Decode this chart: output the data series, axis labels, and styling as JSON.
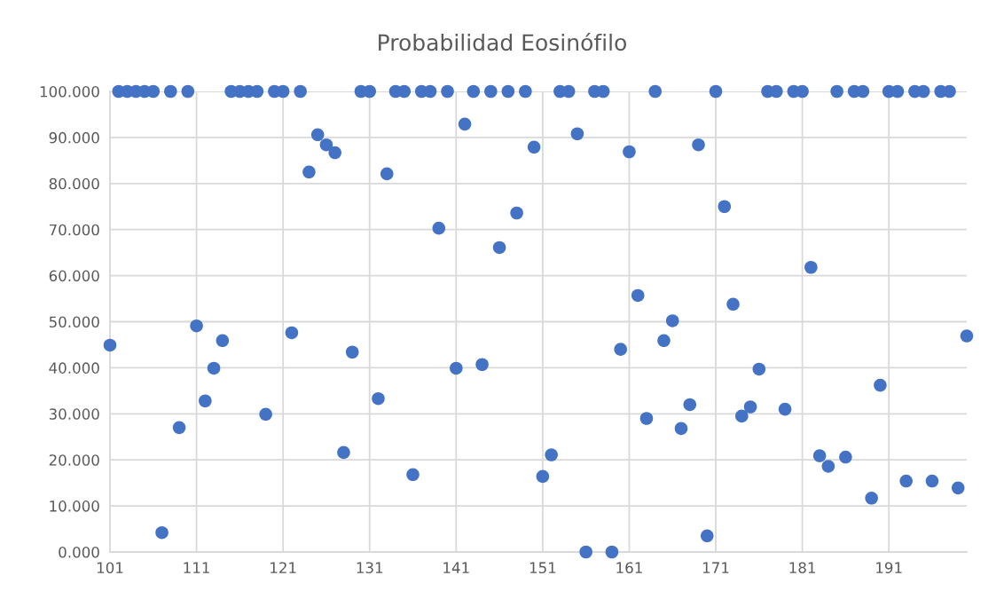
{
  "chart_data": {
    "type": "scatter",
    "title": "Probabilidad Eosinófilo",
    "x": [
      101,
      102,
      103,
      104,
      105,
      106,
      107,
      108,
      109,
      110,
      111,
      112,
      113,
      114,
      115,
      116,
      117,
      118,
      119,
      120,
      121,
      122,
      123,
      124,
      125,
      126,
      127,
      128,
      129,
      130,
      131,
      132,
      133,
      134,
      135,
      136,
      137,
      138,
      139,
      140,
      141,
      142,
      143,
      144,
      145,
      146,
      147,
      148,
      149,
      150,
      151,
      152,
      153,
      154,
      155,
      156,
      157,
      158,
      159,
      160,
      161,
      162,
      163,
      164,
      165,
      166,
      167,
      168,
      169,
      170,
      171,
      172,
      173,
      174,
      175,
      176,
      177,
      178,
      179,
      180,
      181,
      182,
      183,
      184,
      185,
      186,
      187,
      188,
      189,
      190,
      191,
      192,
      193,
      194,
      195,
      196,
      197,
      198,
      199,
      200
    ],
    "values": [
      44.9,
      100,
      100,
      100,
      100,
      100,
      4.2,
      100,
      27.0,
      100,
      49.1,
      32.8,
      39.9,
      45.9,
      100,
      100,
      100,
      100,
      29.9,
      100,
      100,
      47.6,
      100,
      82.5,
      90.6,
      88.4,
      86.7,
      21.6,
      43.4,
      100,
      100,
      33.3,
      82.1,
      100,
      100,
      16.8,
      100,
      100,
      70.3,
      100,
      39.9,
      92.9,
      100,
      40.7,
      100,
      66.1,
      100,
      73.6,
      100,
      87.9,
      16.4,
      21.1,
      100,
      100,
      90.8,
      0,
      100,
      100,
      0,
      44.0,
      86.9,
      55.7,
      29.0,
      100,
      45.9,
      50.2,
      26.8,
      32.0,
      88.4,
      3.5,
      100,
      75.0,
      53.8,
      29.5,
      31.5,
      39.7,
      100,
      100,
      31.0,
      100,
      100,
      61.8,
      20.9,
      18.6,
      100,
      20.6,
      100,
      100,
      11.7,
      36.2,
      100,
      100,
      15.4,
      100,
      100,
      15.4,
      100,
      100,
      13.9,
      46.9
    ],
    "color": "#4472c4",
    "marker": "circle",
    "grid": true,
    "xlim": [
      101,
      200
    ],
    "xticks": [
      101,
      111,
      121,
      131,
      141,
      151,
      161,
      171,
      181,
      191
    ],
    "ylim": [
      0,
      100
    ],
    "yticks": [
      {
        "value": 0,
        "label": "0.000"
      },
      {
        "value": 10,
        "label": "10.000"
      },
      {
        "value": 20,
        "label": "20.000"
      },
      {
        "value": 30,
        "label": "30.000"
      },
      {
        "value": 40,
        "label": "40.000"
      },
      {
        "value": 50,
        "label": "50.000"
      },
      {
        "value": 60,
        "label": "60.000"
      },
      {
        "value": 70,
        "label": "70.000"
      },
      {
        "value": 80,
        "label": "80.000"
      },
      {
        "value": 90,
        "label": "90.000"
      },
      {
        "value": 100,
        "label": "100.000"
      }
    ]
  }
}
